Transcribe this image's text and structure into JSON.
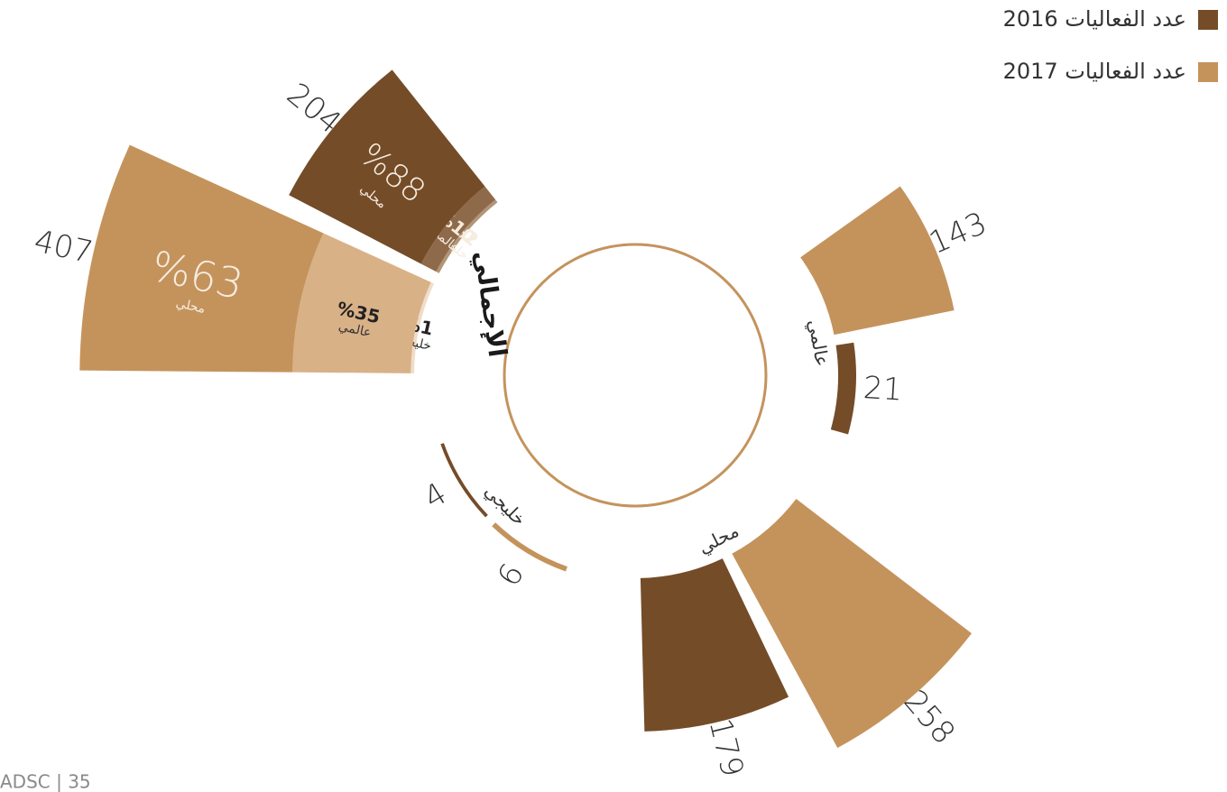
{
  "chart_data": {
    "type": "radial_bar",
    "categories": [
      "محلي",
      "عالمي",
      "خليجي"
    ],
    "series": [
      {
        "name": "عدد الفعاليات 2016",
        "color": "#744c28",
        "values": [
          179,
          21,
          4
        ]
      },
      {
        "name": "عدد الفعاليات 2017",
        "color": "#c4935c",
        "values": [
          258,
          143,
          6
        ]
      }
    ],
    "totals": {
      "label": "الإجمالي",
      "values": [
        204,
        407
      ],
      "shares": [
        [
          88,
          10,
          2
        ],
        [
          63,
          35,
          1
        ]
      ],
      "share_labels": [
        [
          "%88",
          "%10",
          "%2"
        ],
        [
          "%63",
          "%35",
          "%1"
        ]
      ],
      "share_colors": [
        [
          "#744c28",
          "#8f6a4a",
          "#b29577"
        ],
        [
          "#c4935c",
          "#d9b187",
          "#f1dcc9"
        ]
      ]
    },
    "legend": "top-right"
  },
  "footer": "ADSC | 35"
}
